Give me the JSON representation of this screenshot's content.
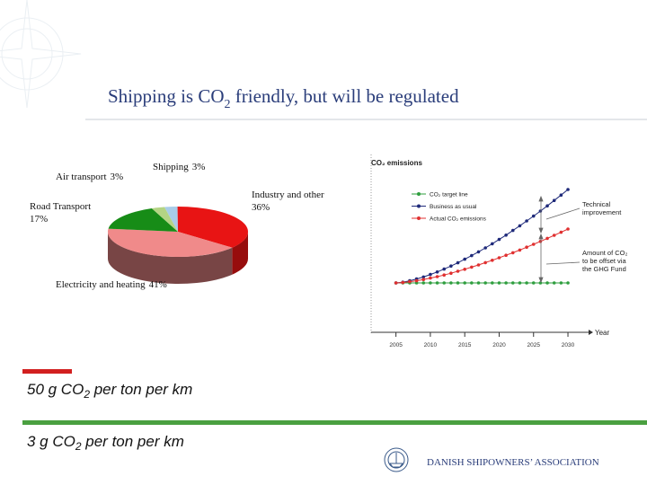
{
  "slide": {
    "title": {
      "before": "Shipping is CO",
      "sub": "2",
      "after": " friendly, but will be regulated"
    },
    "statements": [
      {
        "before": "50 g CO",
        "sub": "2",
        "after": " per ton per km"
      },
      {
        "before": "3 g CO",
        "sub": "2",
        "after": " per ton per km"
      }
    ],
    "footer": "DANISH SHIPOWNERS’ ASSOCIATION"
  },
  "chart_data": [
    {
      "type": "pie",
      "categories": [
        "Shipping",
        "Industry and other",
        "Electricity and heating",
        "Road Transport",
        "Air transport"
      ],
      "values": [
        3,
        36,
        41,
        17,
        3
      ],
      "value_labels": [
        "3%",
        "36%",
        "41%",
        "17%",
        "3%"
      ],
      "colors": [
        "#a8cce8",
        "#e81414",
        "#f08a8a",
        "#178c17",
        "#b4d484"
      ]
    },
    {
      "type": "line",
      "title": "CO₂ emissions",
      "x_label": "Year",
      "x": [
        2005,
        2006,
        2007,
        2008,
        2009,
        2010,
        2011,
        2012,
        2013,
        2014,
        2015,
        2016,
        2017,
        2018,
        2019,
        2020,
        2021,
        2022,
        2023,
        2024,
        2025,
        2026,
        2027,
        2028,
        2029,
        2030
      ],
      "xlim": [
        2001,
        2033
      ],
      "xticks": [
        2005,
        2010,
        2015,
        2020,
        2025,
        2030
      ],
      "ylim": [
        -4,
        96
      ],
      "series": [
        {
          "name": "CO₂ target line",
          "color": "#2e9e3e",
          "values": [
            22,
            22,
            22,
            22,
            22,
            22,
            22,
            22,
            22,
            22,
            22,
            22,
            22,
            22,
            22,
            22,
            22,
            22,
            22,
            22,
            22,
            22,
            22,
            22,
            22,
            22
          ]
        },
        {
          "name": "Business as usual",
          "color": "#1f2a7a",
          "values": [
            22,
            22.4,
            23.2,
            24.2,
            25.3,
            26.7,
            28.1,
            29.7,
            31.4,
            33.2,
            35.2,
            37.2,
            39.3,
            41.5,
            43.8,
            46.2,
            48.6,
            51.2,
            53.8,
            56.5,
            59.2,
            62,
            64.9,
            67.9,
            70.9,
            74
          ]
        },
        {
          "name": "Actual CO₂ emissions",
          "color": "#e03030",
          "values": [
            22,
            22.2,
            22.7,
            23.2,
            23.9,
            24.7,
            25.5,
            26.4,
            27.4,
            28.5,
            29.6,
            30.8,
            32,
            33.3,
            34.6,
            36,
            37.4,
            38.8,
            40.3,
            41.9,
            43.5,
            45.1,
            46.8,
            48.5,
            50.2,
            52
          ]
        }
      ],
      "annotations": [
        {
          "lines": [
            "Technical",
            "improvement"
          ]
        },
        {
          "lines": [
            "Amount of CO₂",
            "to be offset via",
            "the GHG Fund"
          ]
        }
      ]
    }
  ]
}
